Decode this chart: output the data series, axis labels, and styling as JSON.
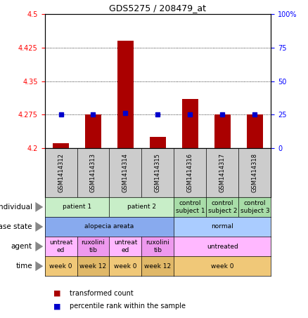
{
  "title": "GDS5275 / 208479_at",
  "samples": [
    "GSM1414312",
    "GSM1414313",
    "GSM1414314",
    "GSM1414315",
    "GSM1414316",
    "GSM1414317",
    "GSM1414318"
  ],
  "transformed_count": [
    4.21,
    4.275,
    4.44,
    4.225,
    4.31,
    4.275,
    4.275
  ],
  "percentile_rank": [
    25,
    25,
    26,
    25,
    25,
    25,
    25
  ],
  "ylim_left": [
    4.2,
    4.5
  ],
  "ylim_right": [
    0,
    100
  ],
  "yticks_left": [
    4.2,
    4.275,
    4.35,
    4.425,
    4.5
  ],
  "yticks_right": [
    0,
    25,
    50,
    75,
    100
  ],
  "ytick_labels_left": [
    "4.2",
    "4.275",
    "4.35",
    "4.425",
    "4.5"
  ],
  "ytick_labels_right": [
    "0",
    "25",
    "50",
    "75",
    "100%"
  ],
  "bar_color": "#aa0000",
  "dot_color": "#0000cc",
  "individual_spans": [
    [
      0,
      2,
      "patient 1"
    ],
    [
      2,
      4,
      "patient 2"
    ],
    [
      4,
      5,
      "control\nsubject 1"
    ],
    [
      5,
      6,
      "control\nsubject 2"
    ],
    [
      6,
      7,
      "control\nsubject 3"
    ]
  ],
  "disease_state_spans": [
    [
      0,
      4,
      "alopecia areata"
    ],
    [
      4,
      7,
      "normal"
    ]
  ],
  "agent_spans": [
    [
      0,
      1,
      "untreat\ned"
    ],
    [
      1,
      2,
      "ruxolini\ntib"
    ],
    [
      2,
      3,
      "untreat\ned"
    ],
    [
      3,
      4,
      "ruxolini\ntib"
    ],
    [
      4,
      7,
      "untreated"
    ]
  ],
  "time_spans": [
    [
      0,
      1,
      "week 0"
    ],
    [
      1,
      2,
      "week 12"
    ],
    [
      2,
      3,
      "week 0"
    ],
    [
      3,
      4,
      "week 12"
    ],
    [
      4,
      7,
      "week 0"
    ]
  ],
  "individual_colors": {
    "patient 1": "#c8eec8",
    "patient 2": "#c8eec8",
    "control\nsubject 1": "#a8dda8",
    "control\nsubject 2": "#a8dda8",
    "control\nsubject 3": "#a8dda8"
  },
  "disease_colors": {
    "alopecia areata": "#88aaee",
    "normal": "#aaccff"
  },
  "agent_colors": {
    "untreat\ned": "#ffb8ff",
    "ruxolini\ntib": "#ee99ee",
    "untreated": "#ffb8ff"
  },
  "time_colors": {
    "week 0": "#f0c878",
    "week 12": "#e0b868"
  },
  "row_labels": [
    "individual",
    "disease state",
    "agent",
    "time"
  ],
  "bar_width": 0.5,
  "sample_label_bg": "#cccccc",
  "chart_bg": "#ffffff"
}
